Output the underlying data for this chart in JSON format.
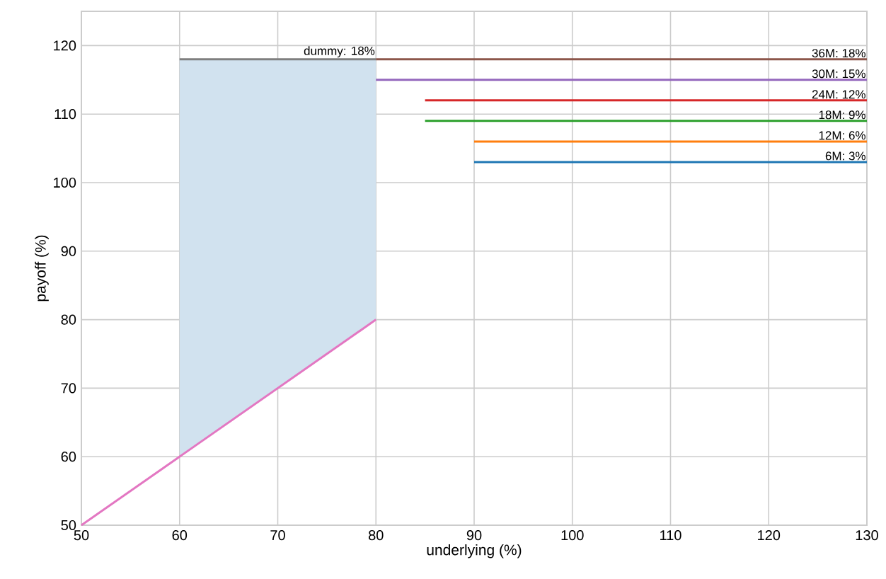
{
  "chart_data": {
    "type": "line",
    "xlabel": "underlying (%)",
    "ylabel": "payoff (%)",
    "xlim": [
      50,
      130
    ],
    "ylim": [
      50,
      125
    ],
    "xticks": [
      50,
      60,
      70,
      80,
      90,
      100,
      110,
      120,
      130
    ],
    "yticks": [
      50,
      60,
      70,
      80,
      90,
      100,
      110,
      120
    ],
    "grid": true,
    "series": [
      {
        "color": "#d1e2ef",
        "x": [
          60,
          80
        ],
        "values": [
          null,
          null
        ],
        "lower": [
          60,
          80
        ],
        "upper": [
          118,
          118
        ]
      },
      {
        "color": "#e377c2",
        "x": [
          50,
          80
        ],
        "values": [
          50,
          80
        ]
      },
      {
        "name": "6M: 3%",
        "color": "#1f77b4",
        "x": [
          90,
          130
        ],
        "values": [
          103,
          103
        ]
      },
      {
        "name": "12M: 6%",
        "color": "#ff7f0e",
        "x": [
          90,
          130
        ],
        "values": [
          106,
          106
        ]
      },
      {
        "name": "18M: 9%",
        "color": "#2ca02c",
        "x": [
          85,
          130
        ],
        "values": [
          109,
          109
        ]
      },
      {
        "name": "24M: 12%",
        "color": "#d62728",
        "x": [
          85,
          130
        ],
        "values": [
          112,
          112
        ]
      },
      {
        "name": "30M: 15%",
        "color": "#9467bd",
        "x": [
          80,
          130
        ],
        "values": [
          115,
          115
        ]
      },
      {
        "name": "36M: 18%",
        "color": "#8c564b",
        "x": [
          80,
          130
        ],
        "values": [
          118,
          118
        ]
      },
      {
        "name": "dummy: 18%",
        "color": "#7f7f7f",
        "x": [
          60,
          80
        ],
        "values": [
          118,
          118
        ]
      }
    ]
  }
}
